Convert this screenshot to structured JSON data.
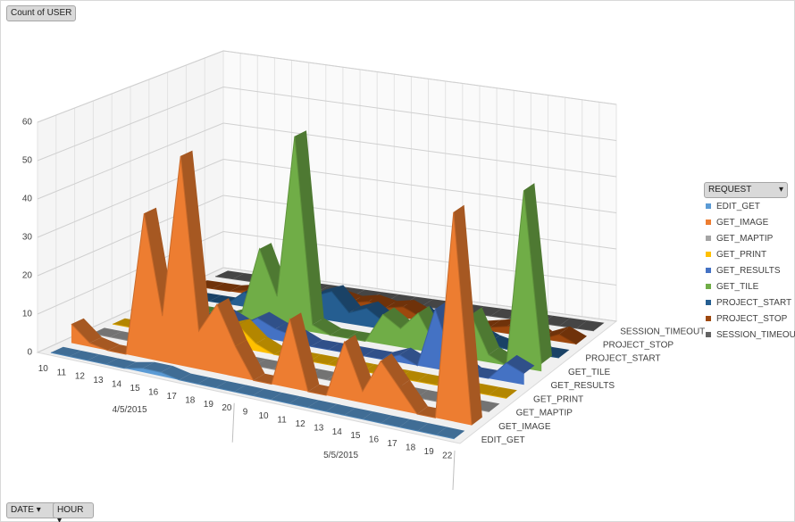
{
  "pivot": {
    "value_field": "Count of USER",
    "axis_fields": [
      "DATE",
      "HOUR"
    ],
    "legend_field": "REQUEST"
  },
  "chart_data": {
    "type": "area3d",
    "groups": [
      {
        "label": "4/5/2015",
        "count": 11
      },
      {
        "label": "5/5/2015",
        "count": 12
      }
    ],
    "categories": [
      "10",
      "11",
      "12",
      "13",
      "14",
      "15",
      "16",
      "17",
      "18",
      "19",
      "20",
      "9",
      "10",
      "11",
      "12",
      "13",
      "14",
      "15",
      "16",
      "17",
      "18",
      "19",
      "22"
    ],
    "ylim": [
      0,
      60
    ],
    "yticks": [
      0,
      10,
      20,
      30,
      40,
      50,
      60
    ],
    "grid": true,
    "series": [
      {
        "name": "EDIT_GET",
        "color": "#5b9bd5",
        "values": [
          0,
          0,
          0,
          0,
          0,
          1,
          1,
          0,
          0,
          0,
          0,
          0,
          0,
          0,
          0,
          0,
          0,
          0,
          0,
          0,
          0,
          0,
          0
        ]
      },
      {
        "name": "GET_IMAGE",
        "color": "#ed7d31",
        "values": [
          5,
          1,
          0,
          0,
          38,
          12,
          55,
          10,
          18,
          8,
          0,
          0,
          18,
          0,
          0,
          15,
          3,
          12,
          6,
          0,
          0,
          55,
          0
        ]
      },
      {
        "name": "GET_MAPTIP",
        "color": "#a5a5a5",
        "values": [
          0,
          0,
          0,
          0,
          0,
          0,
          0,
          0,
          0,
          0,
          0,
          0,
          0,
          0,
          0,
          0,
          0,
          0,
          0,
          0,
          0,
          0,
          0
        ]
      },
      {
        "name": "GET_PRINT",
        "color": "#ffc000",
        "values": [
          0,
          0,
          0,
          0,
          0,
          0,
          4,
          6,
          2,
          0,
          0,
          0,
          0,
          0,
          0,
          0,
          0,
          0,
          0,
          0,
          0,
          0,
          0
        ]
      },
      {
        "name": "GET_RESULTS",
        "color": "#4472c4",
        "values": [
          0,
          0,
          0,
          0,
          3,
          4,
          2,
          5,
          3,
          2,
          0,
          0,
          0,
          0,
          0,
          2,
          0,
          16,
          3,
          0,
          0,
          5,
          3
        ]
      },
      {
        "name": "GET_TILE",
        "color": "#70ad47",
        "values": [
          0,
          0,
          0,
          0,
          0,
          2,
          20,
          8,
          52,
          2,
          0,
          0,
          0,
          8,
          5,
          10,
          2,
          0,
          12,
          2,
          0,
          48,
          2
        ]
      },
      {
        "name": "PROJECT_START",
        "color": "#255e91",
        "values": [
          0,
          0,
          0,
          0,
          4,
          2,
          3,
          2,
          6,
          8,
          3,
          5,
          2,
          0,
          6,
          2,
          0,
          3,
          1,
          0,
          2,
          0,
          0
        ]
      },
      {
        "name": "PROJECT_STOP",
        "color": "#9e480e",
        "values": [
          0,
          0,
          0,
          1,
          2,
          1,
          2,
          1,
          3,
          2,
          3,
          2,
          3,
          1,
          2,
          1,
          0,
          1,
          2,
          3,
          0,
          2,
          0
        ]
      },
      {
        "name": "SESSION_TIMEOUT",
        "color": "#636363",
        "values": [
          0,
          0,
          0,
          0,
          0,
          0,
          0,
          0,
          0,
          0,
          0,
          0,
          0,
          0,
          0,
          0,
          0,
          0,
          0,
          0,
          0,
          0,
          0
        ]
      }
    ]
  }
}
